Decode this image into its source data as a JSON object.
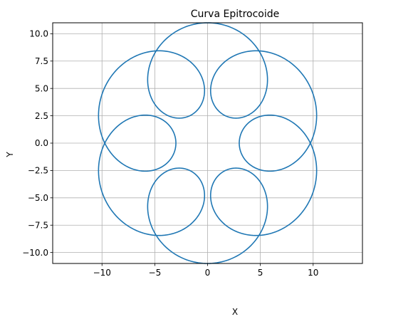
{
  "chart_data": {
    "type": "line",
    "title": "Curva Epitrocoide",
    "xlabel": "X",
    "ylabel": "Y",
    "xlim": [
      -14.67,
      14.67
    ],
    "ylim": [
      -11,
      11
    ],
    "xticks": [
      -10,
      -5,
      0,
      5,
      10
    ],
    "xtick_labels": [
      "−10",
      "−5",
      "0",
      "5",
      "10"
    ],
    "yticks": [
      -10,
      -7.5,
      -5,
      -2.5,
      0,
      2.5,
      5,
      7.5,
      10
    ],
    "ytick_labels": [
      "−10.0",
      "−7.5",
      "−5.0",
      "−2.5",
      "0.0",
      "2.5",
      "5.0",
      "7.5",
      "10.0"
    ],
    "grid": true,
    "aspect": "equal",
    "series": [
      {
        "color": "#1f77b4",
        "curve": "epitrochoid",
        "R": 6,
        "r": 1,
        "d": 4,
        "t_range": [
          0,
          6.283185307
        ],
        "samples": 1000
      }
    ]
  }
}
